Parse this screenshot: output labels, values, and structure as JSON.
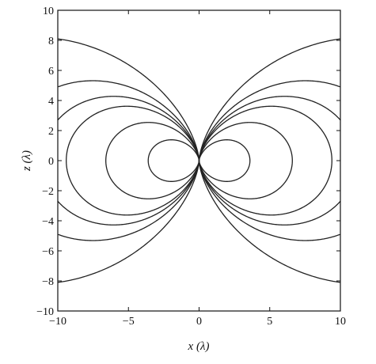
{
  "chart_data": {
    "type": "line",
    "title": "",
    "xlabel": "x (λ)",
    "ylabel": "z (λ)",
    "xlim": [
      -10,
      10
    ],
    "ylim": [
      -10,
      10
    ],
    "xticks": [
      -10,
      -5,
      0,
      5,
      10
    ],
    "yticks": [
      -10,
      -8,
      -6,
      -4,
      -2,
      0,
      2,
      4,
      6,
      8,
      10
    ],
    "xtick_labels": [
      "−10",
      "−5",
      "0",
      "5",
      "10"
    ],
    "ytick_labels": [
      "−10",
      "−8",
      "−6",
      "−4",
      "−2",
      "0",
      "2",
      "4",
      "6",
      "8",
      "10"
    ],
    "grid": false,
    "legend": "none",
    "line_color": "#222222",
    "series": [
      {
        "x_extent": 3.6
      },
      {
        "x_extent": 6.6
      },
      {
        "x_extent": 9.4
      },
      {
        "z_at_edge": 2.7
      },
      {
        "z_at_edge": 4.9
      },
      {
        "z_at_edge": 8.1
      }
    ]
  }
}
